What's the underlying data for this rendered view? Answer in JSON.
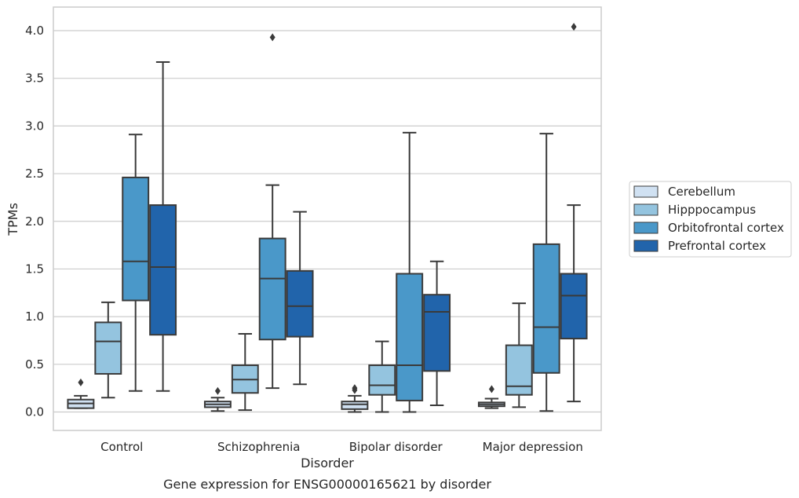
{
  "chart_data": {
    "type": "boxplot",
    "caption": "Gene expression for ENSG00000165621 by disorder",
    "xlabel": "Disorder",
    "ylabel": "TPMs",
    "ylim": [
      -0.19,
      4.25
    ],
    "yticks": [
      0.0,
      0.5,
      1.0,
      1.5,
      2.0,
      2.5,
      3.0,
      3.5,
      4.0
    ],
    "ytick_labels": [
      "0.0",
      "0.5",
      "1.0",
      "1.5",
      "2.0",
      "2.5",
      "3.0",
      "3.5",
      "4.0"
    ],
    "grid": true,
    "legend_position": "right",
    "categories": [
      "Control",
      "Schizophrenia",
      "Bipolar disorder",
      "Major depression"
    ],
    "series": [
      {
        "name": "Cerebellum",
        "color": "#d0e1f2",
        "boxes": [
          {
            "whislo": 0.04,
            "q1": 0.04,
            "med": 0.09,
            "q3": 0.13,
            "whishi": 0.17,
            "fliers": [
              0.31
            ]
          },
          {
            "whislo": 0.01,
            "q1": 0.05,
            "med": 0.08,
            "q3": 0.11,
            "whishi": 0.15,
            "fliers": [
              0.22
            ]
          },
          {
            "whislo": 0.0,
            "q1": 0.03,
            "med": 0.08,
            "q3": 0.11,
            "whishi": 0.17,
            "fliers": [
              0.23,
              0.25
            ]
          },
          {
            "whislo": 0.04,
            "q1": 0.06,
            "med": 0.08,
            "q3": 0.1,
            "whishi": 0.14,
            "fliers": [
              0.24
            ]
          }
        ]
      },
      {
        "name": "Hipppocampus",
        "color": "#94c4df",
        "boxes": [
          {
            "whislo": 0.15,
            "q1": 0.4,
            "med": 0.74,
            "q3": 0.94,
            "whishi": 1.15,
            "fliers": []
          },
          {
            "whislo": 0.02,
            "q1": 0.2,
            "med": 0.34,
            "q3": 0.49,
            "whishi": 0.82,
            "fliers": []
          },
          {
            "whislo": 0.0,
            "q1": 0.18,
            "med": 0.28,
            "q3": 0.49,
            "whishi": 0.74,
            "fliers": []
          },
          {
            "whislo": 0.05,
            "q1": 0.18,
            "med": 0.27,
            "q3": 0.7,
            "whishi": 1.14,
            "fliers": []
          }
        ]
      },
      {
        "name": "Orbitofrontal cortex",
        "color": "#4a98c9",
        "boxes": [
          {
            "whislo": 0.22,
            "q1": 1.17,
            "med": 1.58,
            "q3": 2.46,
            "whishi": 2.91,
            "fliers": []
          },
          {
            "whislo": 0.25,
            "q1": 0.76,
            "med": 1.4,
            "q3": 1.82,
            "whishi": 2.38,
            "fliers": [
              3.93
            ]
          },
          {
            "whislo": 0.0,
            "q1": 0.12,
            "med": 0.49,
            "q3": 1.45,
            "whishi": 2.93,
            "fliers": []
          },
          {
            "whislo": 0.01,
            "q1": 0.41,
            "med": 0.89,
            "q3": 1.76,
            "whishi": 2.92,
            "fliers": []
          }
        ]
      },
      {
        "name": "Prefrontal cortex",
        "color": "#2164ab",
        "boxes": [
          {
            "whislo": 0.22,
            "q1": 0.81,
            "med": 1.52,
            "q3": 2.17,
            "whishi": 3.67,
            "fliers": []
          },
          {
            "whislo": 0.29,
            "q1": 0.79,
            "med": 1.11,
            "q3": 1.48,
            "whishi": 2.1,
            "fliers": []
          },
          {
            "whislo": 0.07,
            "q1": 0.43,
            "med": 1.05,
            "q3": 1.23,
            "whishi": 1.58,
            "fliers": []
          },
          {
            "whislo": 0.11,
            "q1": 0.77,
            "med": 1.22,
            "q3": 1.45,
            "whishi": 2.17,
            "fliers": [
              4.04
            ]
          }
        ]
      }
    ]
  }
}
